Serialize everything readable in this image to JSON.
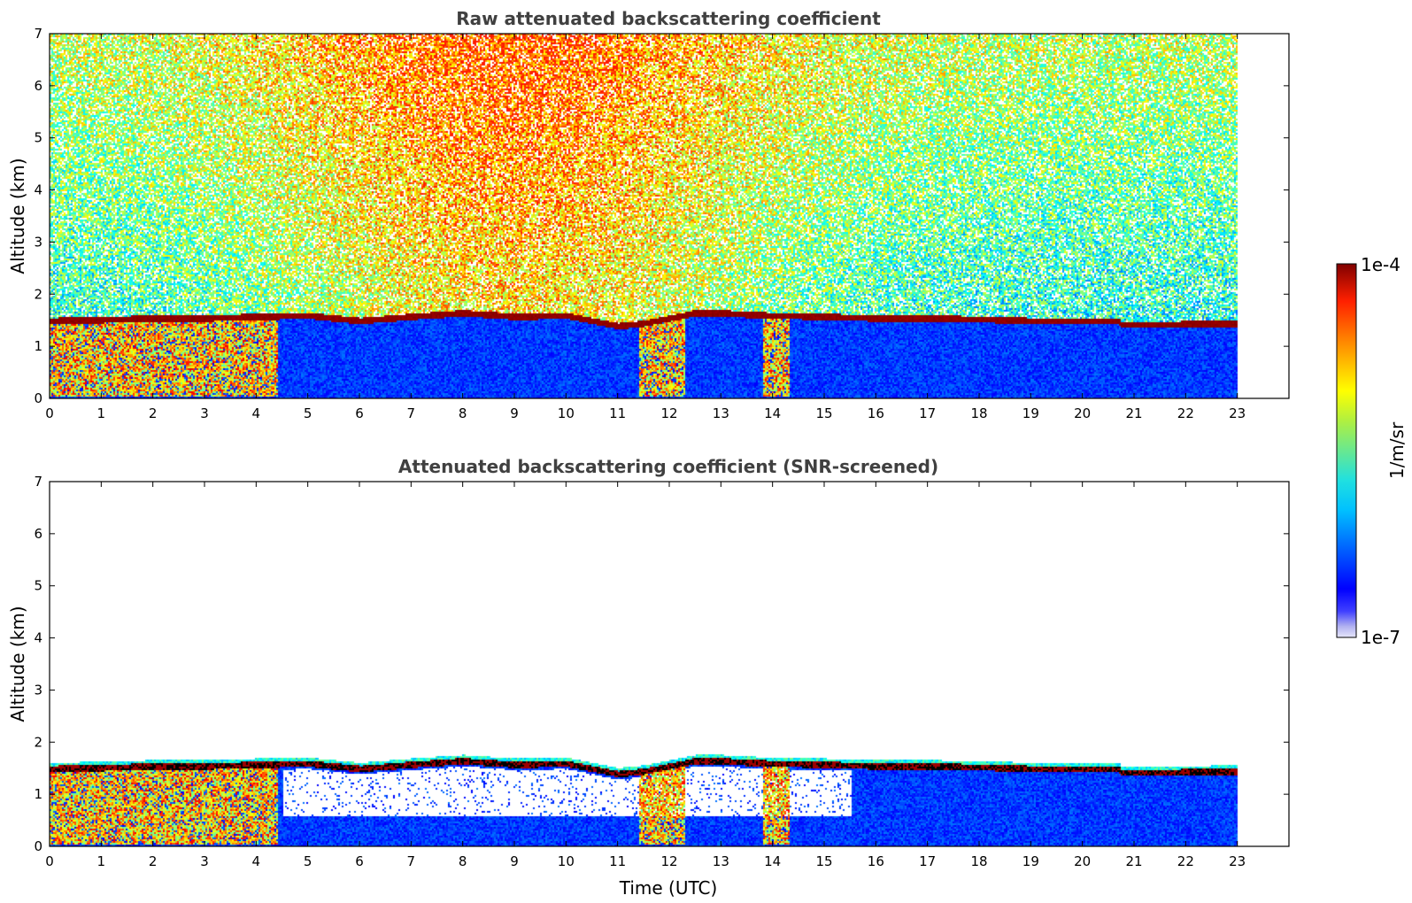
{
  "chart_data": [
    {
      "type": "heatmap",
      "title": "Raw attenuated backscattering coefficient",
      "xlabel": "",
      "ylabel": "Altitude (km)",
      "xlim": [
        0,
        24
      ],
      "ylim": [
        0,
        7
      ],
      "x_ticks": [
        "0",
        "1",
        "2",
        "3",
        "4",
        "5",
        "6",
        "7",
        "8",
        "9",
        "10",
        "11",
        "12",
        "13",
        "14",
        "15",
        "16",
        "17",
        "18",
        "19",
        "20",
        "21",
        "22",
        "23"
      ],
      "y_ticks": [
        "0",
        "1",
        "2",
        "3",
        "4",
        "5",
        "6",
        "7"
      ],
      "data_end_time": 23,
      "screened": false,
      "cloud_base_km": [
        [
          0,
          1.5
        ],
        [
          1,
          1.52
        ],
        [
          2,
          1.55
        ],
        [
          3,
          1.55
        ],
        [
          4,
          1.58
        ],
        [
          5,
          1.6
        ],
        [
          6,
          1.5
        ],
        [
          7,
          1.58
        ],
        [
          8,
          1.65
        ],
        [
          9,
          1.58
        ],
        [
          10,
          1.6
        ],
        [
          10.5,
          1.5
        ],
        [
          11,
          1.4
        ],
        [
          11.5,
          1.45
        ],
        [
          12,
          1.55
        ],
        [
          12.5,
          1.65
        ],
        [
          13,
          1.65
        ],
        [
          13.5,
          1.62
        ],
        [
          14,
          1.6
        ],
        [
          15,
          1.58
        ],
        [
          16,
          1.55
        ],
        [
          17,
          1.55
        ],
        [
          18,
          1.53
        ],
        [
          19,
          1.5
        ],
        [
          20,
          1.5
        ],
        [
          20.7,
          1.5
        ],
        [
          20.75,
          1.42
        ],
        [
          23,
          1.45
        ]
      ]
    },
    {
      "type": "heatmap",
      "title": "Attenuated backscattering coefficient (SNR-screened)",
      "xlabel": "Time (UTC)",
      "ylabel": "Altitude (km)",
      "xlim": [
        0,
        24
      ],
      "ylim": [
        0,
        7
      ],
      "x_ticks": [
        "0",
        "1",
        "2",
        "3",
        "4",
        "5",
        "6",
        "7",
        "8",
        "9",
        "10",
        "11",
        "12",
        "13",
        "14",
        "15",
        "16",
        "17",
        "18",
        "19",
        "20",
        "21",
        "22",
        "23"
      ],
      "y_ticks": [
        "0",
        "1",
        "2",
        "3",
        "4",
        "5",
        "6",
        "7"
      ],
      "data_end_time": 23,
      "screened": true,
      "cloud_base_km": [
        [
          0,
          1.5
        ],
        [
          1,
          1.52
        ],
        [
          2,
          1.55
        ],
        [
          3,
          1.55
        ],
        [
          4,
          1.58
        ],
        [
          5,
          1.6
        ],
        [
          6,
          1.5
        ],
        [
          7,
          1.58
        ],
        [
          8,
          1.65
        ],
        [
          9,
          1.58
        ],
        [
          10,
          1.6
        ],
        [
          10.5,
          1.5
        ],
        [
          11,
          1.4
        ],
        [
          11.5,
          1.45
        ],
        [
          12,
          1.55
        ],
        [
          12.5,
          1.65
        ],
        [
          13,
          1.65
        ],
        [
          13.5,
          1.62
        ],
        [
          14,
          1.6
        ],
        [
          15,
          1.58
        ],
        [
          16,
          1.55
        ],
        [
          17,
          1.55
        ],
        [
          18,
          1.53
        ],
        [
          19,
          1.5
        ],
        [
          20,
          1.5
        ],
        [
          20.7,
          1.5
        ],
        [
          20.75,
          1.42
        ],
        [
          23,
          1.45
        ]
      ]
    }
  ],
  "colorbar": {
    "max_label": "1e-4",
    "min_label": "1e-7",
    "unit_label": "1/m/sr",
    "colormap": "jet"
  }
}
